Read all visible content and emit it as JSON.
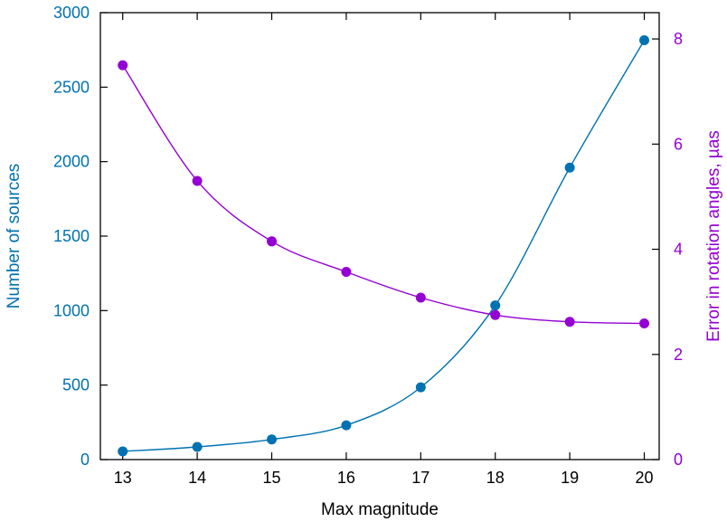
{
  "chart_data": {
    "type": "line",
    "title": "",
    "xlabel": "Max magnitude",
    "ylabel": "Number of sources",
    "y2label": "Error in rotation angles, µas",
    "x": [
      13,
      14,
      15,
      16,
      17,
      18,
      19,
      20
    ],
    "xlim": [
      12.7,
      20.2
    ],
    "ylim": [
      0,
      3000
    ],
    "y2lim": [
      0,
      8.5
    ],
    "xticks": [
      "13",
      "14",
      "15",
      "16",
      "17",
      "18",
      "19",
      "20"
    ],
    "yticks": [
      "0",
      "500",
      "1000",
      "1500",
      "2000",
      "2500",
      "3000"
    ],
    "y2ticks": [
      "0",
      "2",
      "4",
      "6",
      "8"
    ],
    "grid": false,
    "series": [
      {
        "axis": "left",
        "color": "#0072b2",
        "values": [
          55,
          85,
          135,
          230,
          485,
          1035,
          1960,
          2815
        ]
      },
      {
        "axis": "right",
        "color": "#9400d3",
        "values": [
          7.5,
          5.3,
          4.15,
          3.57,
          3.08,
          2.75,
          2.62,
          2.59
        ]
      }
    ]
  }
}
